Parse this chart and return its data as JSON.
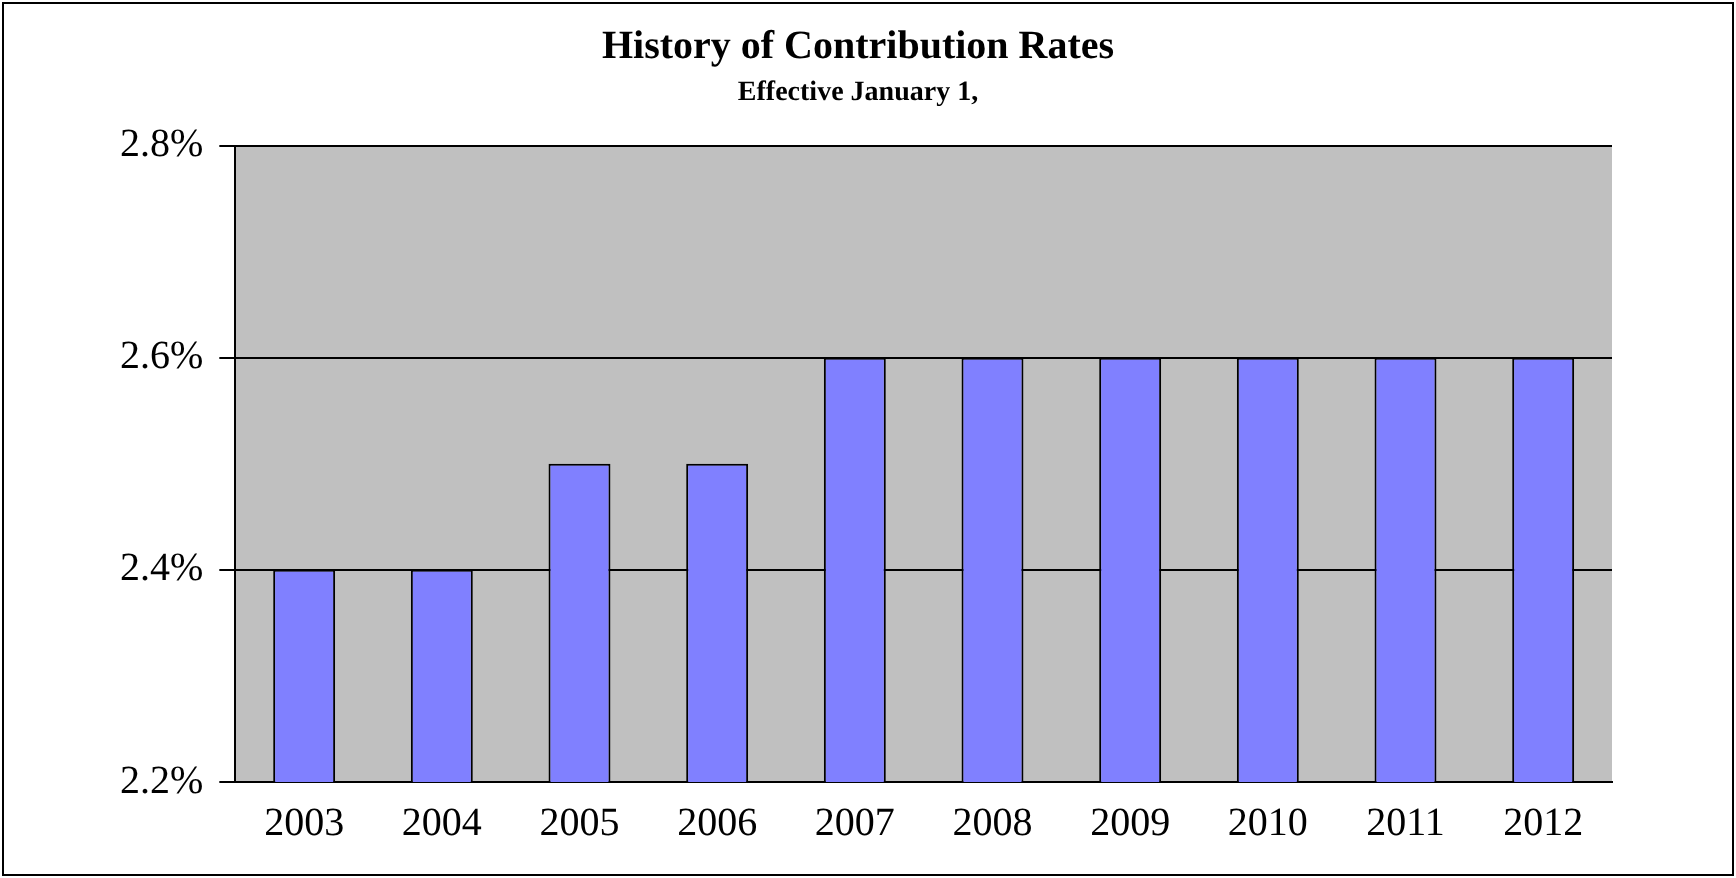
{
  "chart_data": {
    "type": "bar",
    "title": "History of Contribution Rates",
    "subtitle": "Effective January 1,",
    "categories": [
      "2003",
      "2004",
      "2005",
      "2006",
      "2007",
      "2008",
      "2009",
      "2010",
      "2011",
      "2012"
    ],
    "values": [
      2.4,
      2.4,
      2.5,
      2.5,
      2.6,
      2.6,
      2.6,
      2.6,
      2.6,
      2.6
    ],
    "color": "#8080ff",
    "ylim": [
      2.2,
      2.8
    ],
    "yticks": [
      {
        "value": 2.2,
        "label": "2.2%"
      },
      {
        "value": 2.4,
        "label": "2.4%"
      },
      {
        "value": 2.6,
        "label": "2.6%"
      },
      {
        "value": 2.8,
        "label": "2.8%"
      }
    ],
    "grid": "y",
    "legend": false
  }
}
